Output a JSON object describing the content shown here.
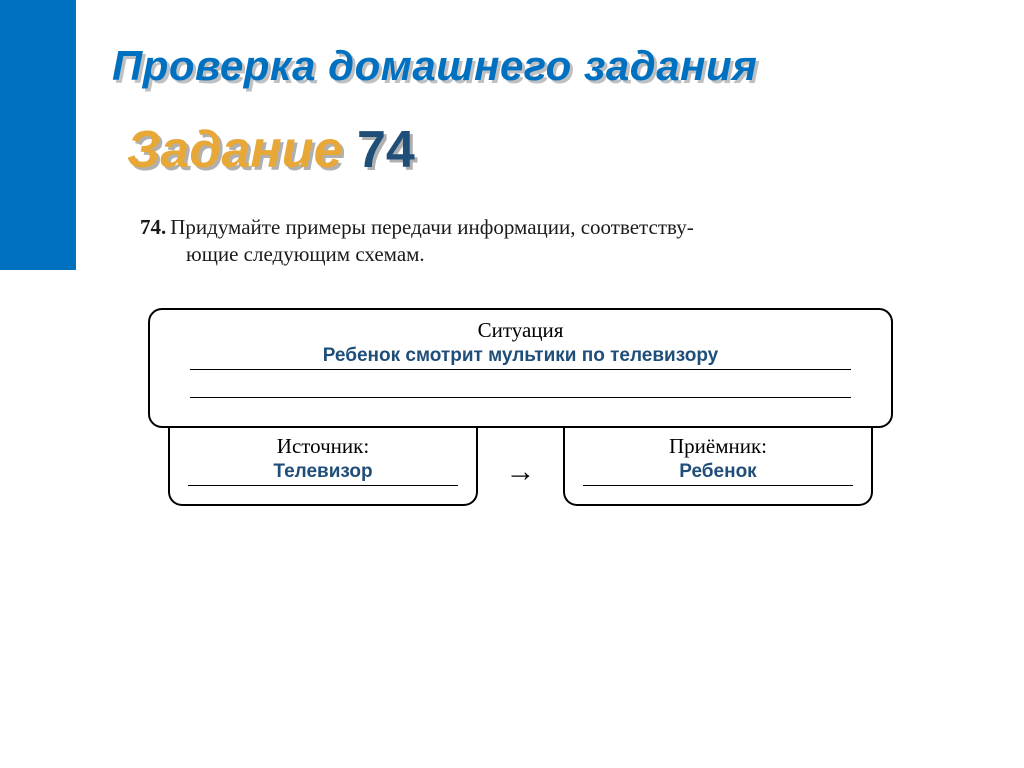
{
  "header": {
    "title": "Проверка домашнего задания",
    "task_word": "Задание",
    "task_number": "74"
  },
  "problem": {
    "number": "74.",
    "text_line1": "Придумайте примеры передачи информации, соответству-",
    "text_line2": "ющие следующим схемам."
  },
  "diagram": {
    "situation_label": "Ситуация",
    "situation_answer": "Ребенок смотрит мультики по  телевизору",
    "source_label": "Источник:",
    "source_answer": "Телевизор",
    "receiver_label": "Приёмник:",
    "receiver_answer": "Ребенок",
    "arrow": "→"
  },
  "colors": {
    "title_color": "#0070c0",
    "task_word_color": "#e8a838",
    "task_number_color": "#1f4e79",
    "answer_color": "#1f4e79",
    "sidebar_main": "#0070c0"
  }
}
